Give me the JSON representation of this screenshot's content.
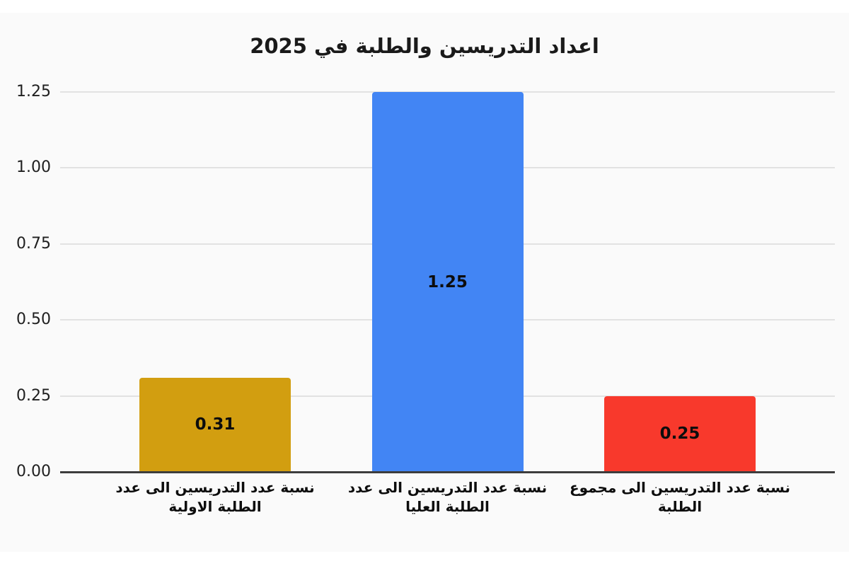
{
  "title": "اعداد التدريسين والطلبة في 2025",
  "chart_data": {
    "type": "bar",
    "title": "اعداد التدريسين والطلبة في 2025",
    "categories": [
      "نسبة عدد التدريسين الى عدد الطلبة الاولية",
      "نسبة عدد التدريسين الى عدد الطلبة العليا",
      "نسبة عدد التدريسين الى مجموع الطلبة"
    ],
    "category_lines": [
      [
        "نسبة عدد التدريسين الى عدد",
        "الطلبة الاولية"
      ],
      [
        "نسبة عدد التدريسين الى عدد",
        "الطلبة العليا"
      ],
      [
        "نسبة عدد التدريسين الى مجموع",
        "الطلبة"
      ]
    ],
    "values": [
      0.31,
      1.25,
      0.25
    ],
    "value_labels": [
      "0.31",
      "1.25",
      "0.25"
    ],
    "bar_colors": [
      "#d29e10",
      "#4285f4",
      "#f8392c"
    ],
    "yticks": [
      "0.00",
      "0.25",
      "0.50",
      "0.75",
      "1.00",
      "1.25"
    ],
    "ylim": [
      0,
      1.25
    ],
    "xlabel": "",
    "ylabel": "",
    "grid": true,
    "legend_position": "none",
    "text_direction": "rtl"
  },
  "colors": {
    "canvas_background": "#fafafa",
    "page_background": "#ffffff",
    "gridline": "#e2e2e2",
    "axis_baseline": "#3d3d3d",
    "title_text": "#1a1a1a",
    "tick_text": "#1f1f1f",
    "value_text": "#0d0d0d"
  }
}
